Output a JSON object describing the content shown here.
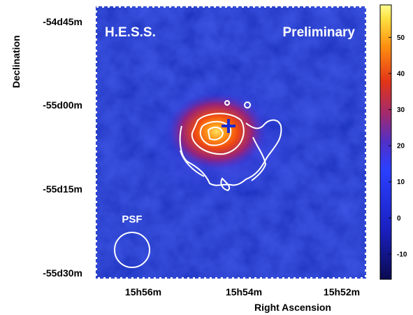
{
  "chart_data": {
    "type": "heatmap",
    "overlay_labels": {
      "left": "H.E.S.S.",
      "right": "Preliminary"
    },
    "xlabel": "Right Ascension",
    "ylabel": "Declination",
    "x_ticks": [
      "15h56m",
      "15h54m",
      "15h52m"
    ],
    "y_ticks": [
      "-54d45m",
      "-55d00m",
      "-55d15m",
      "-55d30m"
    ],
    "colorbar": {
      "ticks": [
        50,
        40,
        30,
        20,
        10,
        0,
        -10
      ],
      "range": [
        -17,
        59
      ],
      "colormap": [
        "#0a0a50",
        "#1a2ad0",
        "#2a40ff",
        "#7a1e8c",
        "#e23418",
        "#ff8a10",
        "#ffd830",
        "#ffff80"
      ]
    },
    "psf_label": "PSF",
    "contour_color": "#ffffff",
    "source_marker": {
      "symbol": "+",
      "color": "#1a2ad0"
    },
    "background_color": "#1d32c8"
  }
}
